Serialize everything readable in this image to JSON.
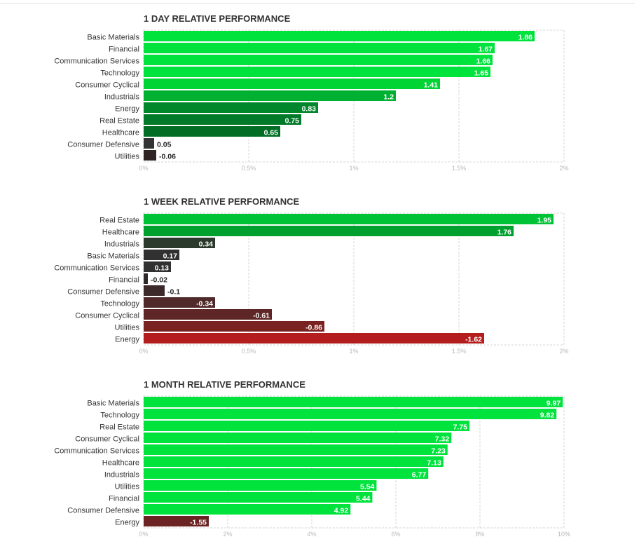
{
  "chart_data": [
    {
      "type": "bar",
      "orientation": "horizontal",
      "title": "1 DAY RELATIVE PERFORMANCE",
      "categories": [
        "Basic Materials",
        "Financial",
        "Communication Services",
        "Technology",
        "Consumer Cyclical",
        "Industrials",
        "Energy",
        "Real Estate",
        "Healthcare",
        "Consumer Defensive",
        "Utilities"
      ],
      "values": [
        1.86,
        1.67,
        1.66,
        1.65,
        1.41,
        1.2,
        0.83,
        0.75,
        0.65,
        0.05,
        -0.06
      ],
      "value_labels": [
        "1.86",
        "1.67",
        "1.66",
        "1.65",
        "1.41",
        "1.2",
        "0.83",
        "0.75",
        "0.65",
        "0.05",
        "-0.06"
      ],
      "colors": [
        "#00e33d",
        "#00e33d",
        "#00e33d",
        "#00e33d",
        "#00d435",
        "#00b131",
        "#00862b",
        "#007a28",
        "#016d25",
        "#333333",
        "#2e2424"
      ],
      "xlim": [
        0,
        2
      ],
      "xticks": [
        "0%",
        "0.5%",
        "1%",
        "1.5%",
        "2%"
      ],
      "grid": true
    },
    {
      "type": "bar",
      "orientation": "horizontal",
      "title": "1 WEEK RELATIVE PERFORMANCE",
      "categories": [
        "Real Estate",
        "Healthcare",
        "Industrials",
        "Basic Materials",
        "Communication Services",
        "Financial",
        "Consumer Defensive",
        "Technology",
        "Consumer Cyclical",
        "Utilities",
        "Energy"
      ],
      "values": [
        1.95,
        1.76,
        0.34,
        0.17,
        0.13,
        -0.02,
        -0.1,
        -0.34,
        -0.61,
        -0.86,
        -1.62
      ],
      "value_labels": [
        "1.95",
        "1.76",
        "0.34",
        "0.17",
        "0.13",
        "-0.02",
        "-0.1",
        "-0.34",
        "-0.61",
        "-0.86",
        "-1.62"
      ],
      "colors": [
        "#00c236",
        "#00a02f",
        "#2b3a2c",
        "#313131",
        "#313131",
        "#2e2828",
        "#3c2a2a",
        "#502a2a",
        "#5e2626",
        "#7a2222",
        "#b31d1d"
      ],
      "xlim": [
        0,
        2
      ],
      "xticks": [
        "0%",
        "0.5%",
        "1%",
        "1.5%",
        "2%"
      ],
      "grid": true
    },
    {
      "type": "bar",
      "orientation": "horizontal",
      "title": "1 MONTH RELATIVE PERFORMANCE",
      "categories": [
        "Basic Materials",
        "Technology",
        "Real Estate",
        "Consumer Cyclical",
        "Communication Services",
        "Healthcare",
        "Industrials",
        "Utilities",
        "Financial",
        "Consumer Defensive",
        "Energy"
      ],
      "values": [
        9.97,
        9.82,
        7.75,
        7.32,
        7.23,
        7.13,
        6.77,
        5.54,
        5.44,
        4.92,
        -1.55
      ],
      "value_labels": [
        "9.97",
        "9.82",
        "7.75",
        "7.32",
        "7.23",
        "7.13",
        "6.77",
        "5.54",
        "5.44",
        "4.92",
        "-1.55"
      ],
      "colors": [
        "#00e33d",
        "#00e33d",
        "#00e33d",
        "#00e33d",
        "#00e33d",
        "#00e33d",
        "#00e33d",
        "#00e33d",
        "#00e33d",
        "#00e33d",
        "#6b2323"
      ],
      "xlim": [
        0,
        10
      ],
      "xticks": [
        "0%",
        "2%",
        "4%",
        "6%",
        "8%",
        "10%"
      ],
      "grid": true
    }
  ]
}
